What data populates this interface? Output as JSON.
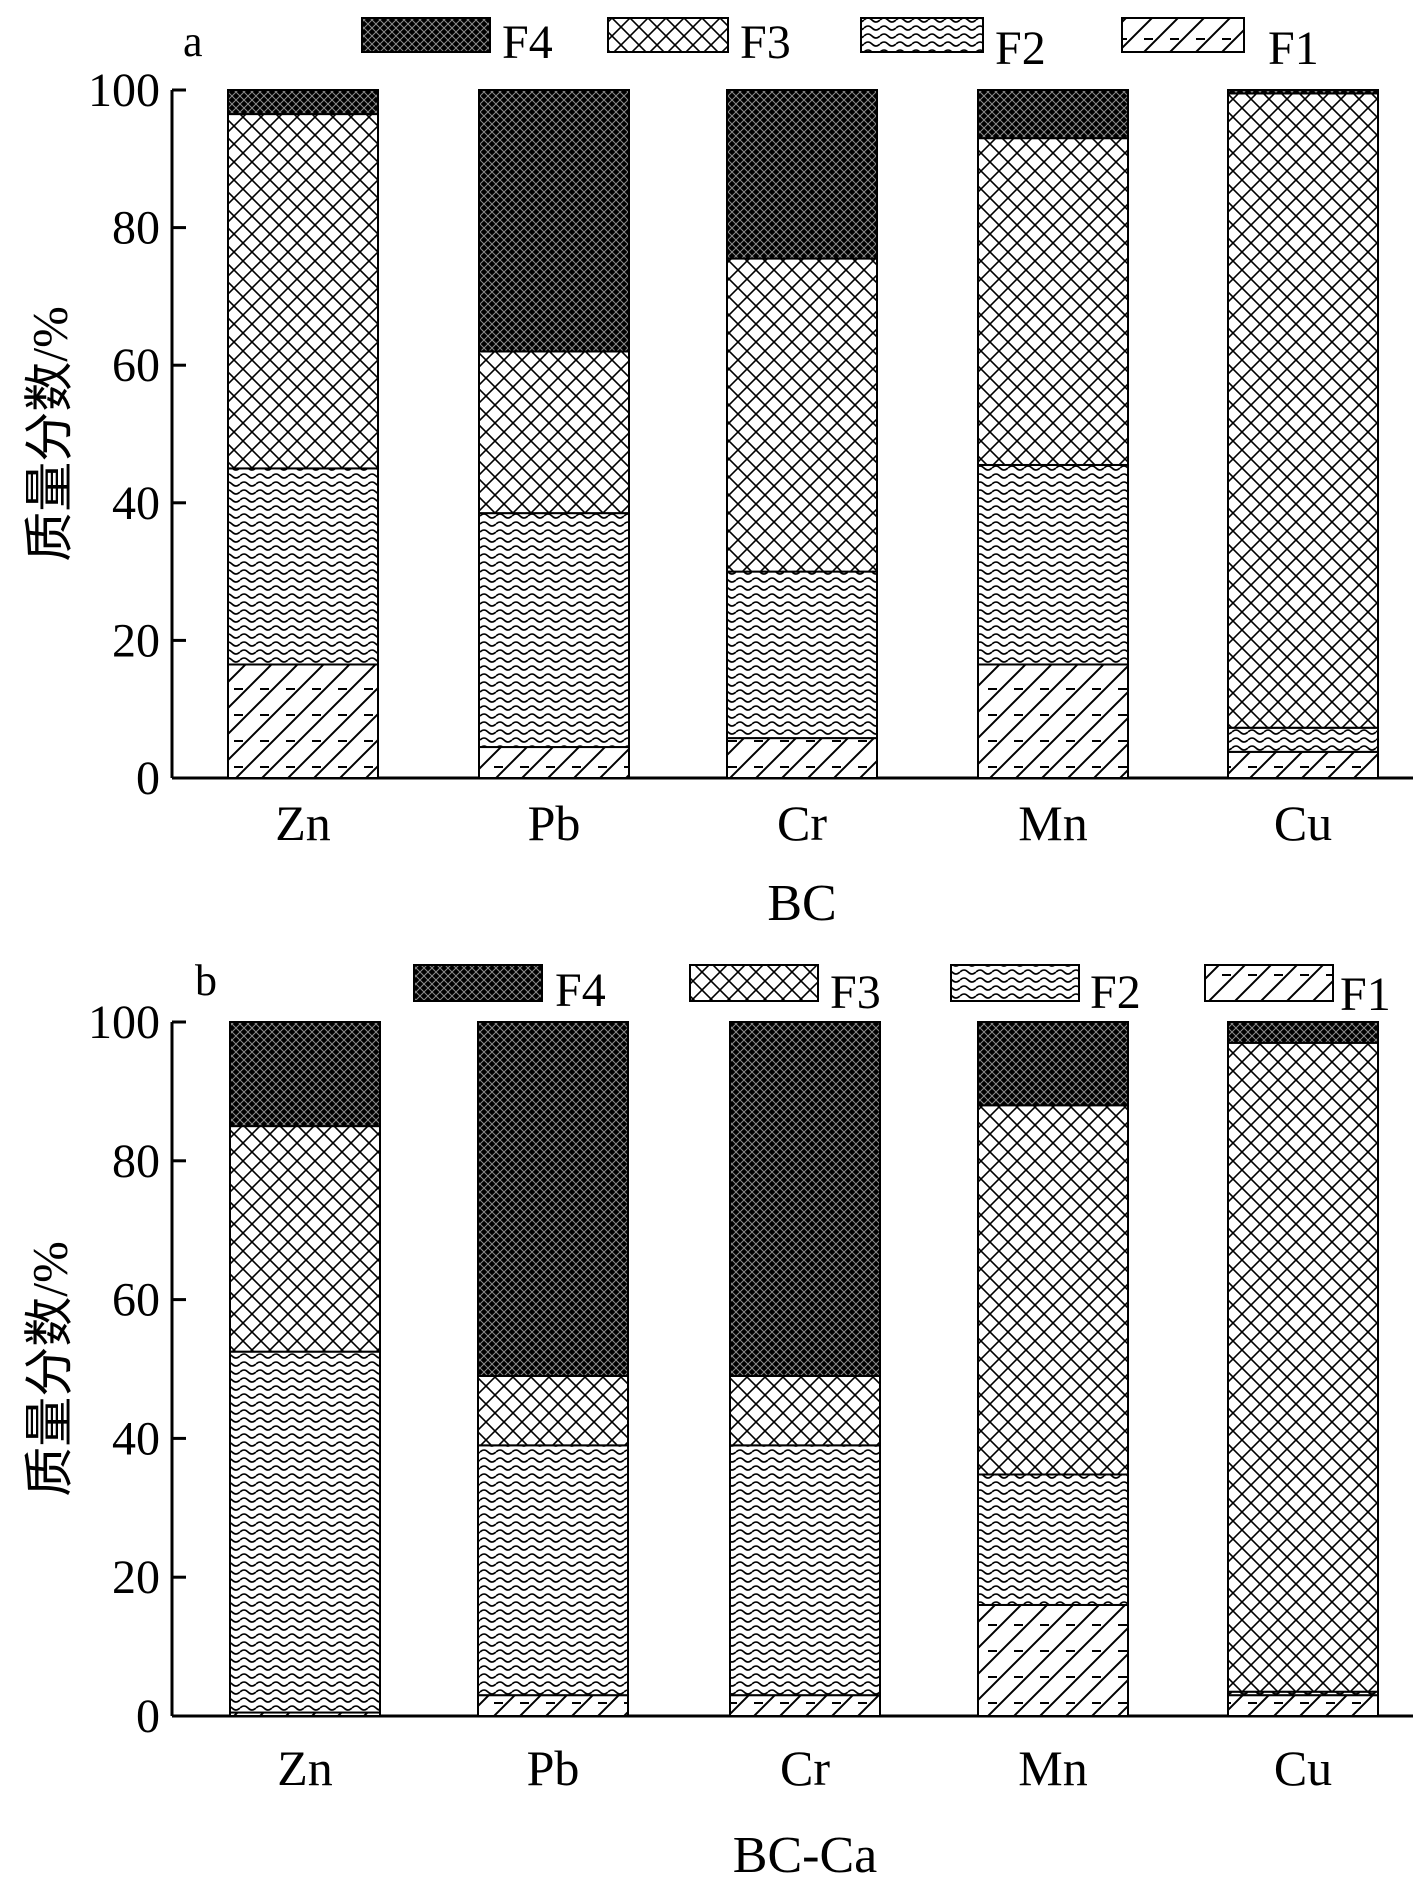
{
  "chart_data": [
    {
      "panel_label": "a",
      "type": "bar",
      "stacked": true,
      "categories": [
        "Zn",
        "Pb",
        "Cr",
        "Mn",
        "Cu"
      ],
      "series": [
        {
          "name": "F1",
          "values": [
            16.5,
            4.5,
            5.8,
            16.5,
            3.8
          ]
        },
        {
          "name": "F2",
          "values": [
            28.5,
            34.0,
            24.2,
            29.0,
            3.5
          ]
        },
        {
          "name": "F3",
          "values": [
            51.5,
            23.5,
            45.5,
            47.5,
            92.2
          ]
        },
        {
          "name": "F4",
          "values": [
            3.5,
            38.0,
            24.5,
            7.0,
            0.5
          ]
        }
      ],
      "legend_order": [
        "F4",
        "F3",
        "F2",
        "F1"
      ],
      "legend_position": "top",
      "ylabel": "质量分数/%",
      "xlabel": "BC",
      "ylim": [
        0,
        100
      ],
      "yticks": [
        0,
        20,
        40,
        60,
        80,
        100
      ]
    },
    {
      "panel_label": "b",
      "type": "bar",
      "stacked": true,
      "categories": [
        "Zn",
        "Pb",
        "Cr",
        "Mn",
        "Cu"
      ],
      "series": [
        {
          "name": "F1",
          "values": [
            0.5,
            3.0,
            3.0,
            16.0,
            3.0
          ]
        },
        {
          "name": "F2",
          "values": [
            52.0,
            36.0,
            36.0,
            18.8,
            0.5
          ]
        },
        {
          "name": "F3",
          "values": [
            32.5,
            10.0,
            10.0,
            53.2,
            93.5
          ]
        },
        {
          "name": "F4",
          "values": [
            15.0,
            51.0,
            51.0,
            12.0,
            3.0
          ]
        }
      ],
      "legend_order": [
        "F4",
        "F3",
        "F2",
        "F1"
      ],
      "legend_position": "top",
      "ylabel": "质量分数/%",
      "xlabel": "BC-Ca",
      "ylim": [
        0,
        100
      ],
      "yticks": [
        0,
        20,
        40,
        60,
        80,
        100
      ]
    }
  ]
}
